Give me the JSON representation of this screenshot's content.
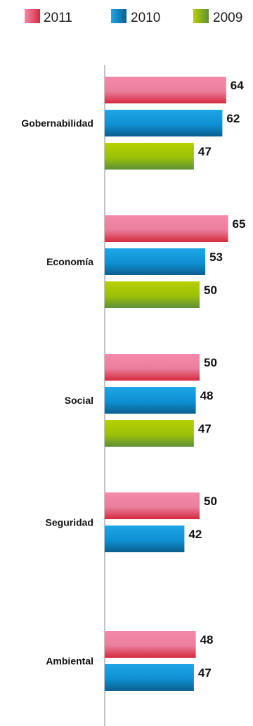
{
  "chart_data": {
    "type": "bar",
    "orientation": "horizontal",
    "categories": [
      "Gobernabilidad",
      "Economía",
      "Social",
      "Seguridad",
      "Ambiental"
    ],
    "series": [
      {
        "name": "2011",
        "values": [
          64,
          65,
          50,
          50,
          48
        ],
        "color": "#e03a54"
      },
      {
        "name": "2010",
        "values": [
          62,
          53,
          48,
          42,
          47
        ],
        "color": "#0f86c8"
      },
      {
        "name": "2009",
        "values": [
          47,
          50,
          47,
          null,
          null
        ],
        "color": "#86b51c"
      }
    ],
    "title": "",
    "xlabel": "",
    "ylabel": "",
    "grid": false,
    "legend_position": "top"
  }
}
